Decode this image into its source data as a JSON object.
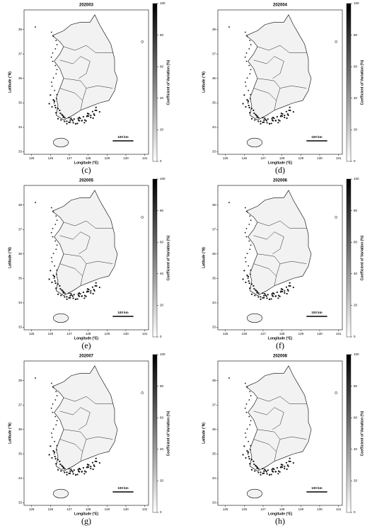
{
  "panels": [
    {
      "title": "202003",
      "caption": "(c)"
    },
    {
      "title": "202004",
      "caption": "(d)"
    },
    {
      "title": "202005",
      "caption": "(e)"
    },
    {
      "title": "202006",
      "caption": "(f)"
    },
    {
      "title": "202007",
      "caption": "(g)"
    },
    {
      "title": "202008",
      "caption": "(h)"
    }
  ],
  "axes": {
    "xlabel": "Longitude (°E)",
    "ylabel": "Latitude (°N)",
    "xlim": [
      124.6,
      131.2
    ],
    "ylim": [
      32.9,
      38.8
    ],
    "xticks": [
      125,
      126,
      127,
      128,
      129,
      130,
      131
    ],
    "yticks": [
      33,
      34,
      35,
      36,
      37,
      38
    ]
  },
  "colorbar": {
    "label": "Coefficient of Variation (%)",
    "lim": [
      0,
      100
    ],
    "ticks": [
      0,
      20,
      40,
      60,
      80,
      100
    ]
  },
  "scale_bar": "100 km"
}
